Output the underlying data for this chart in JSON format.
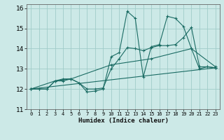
{
  "xlabel": "Humidex (Indice chaleur)",
  "bg_color": "#cce9e7",
  "grid_color": "#a0ccc9",
  "line_color": "#1a6b63",
  "xlim": [
    -0.5,
    23.5
  ],
  "ylim": [
    11,
    16.2
  ],
  "yticks": [
    11,
    12,
    13,
    14,
    15,
    16
  ],
  "xticks": [
    0,
    1,
    2,
    3,
    4,
    5,
    6,
    7,
    8,
    9,
    10,
    11,
    12,
    13,
    14,
    15,
    16,
    17,
    18,
    19,
    20,
    21,
    22,
    23
  ],
  "lines": [
    {
      "x": [
        0,
        1,
        2,
        3,
        4,
        5,
        6,
        7,
        8,
        9,
        10,
        11,
        12,
        13,
        14,
        15,
        16,
        17,
        18,
        19,
        20,
        21,
        22,
        23
      ],
      "y": [
        12.0,
        12.0,
        12.0,
        12.4,
        12.5,
        12.5,
        12.3,
        11.85,
        11.9,
        12.0,
        13.6,
        13.8,
        15.85,
        15.5,
        12.6,
        14.1,
        14.2,
        15.6,
        15.5,
        15.1,
        14.0,
        13.0,
        13.1,
        13.05
      ]
    },
    {
      "x": [
        0,
        1,
        2,
        3,
        4,
        5,
        6,
        7,
        8,
        9,
        10,
        11,
        12,
        13,
        14,
        15,
        16,
        17,
        18,
        19,
        20,
        21,
        22,
        23
      ],
      "y": [
        12.0,
        12.0,
        12.0,
        12.4,
        12.4,
        12.5,
        12.3,
        12.0,
        12.0,
        12.05,
        13.0,
        13.5,
        14.05,
        14.0,
        13.9,
        14.05,
        14.15,
        14.15,
        14.2,
        14.55,
        15.05,
        13.1,
        13.1,
        13.05
      ]
    },
    {
      "x": [
        0,
        3,
        5,
        10,
        15,
        20,
        23
      ],
      "y": [
        12.0,
        12.4,
        12.5,
        13.2,
        13.5,
        14.0,
        13.1
      ]
    },
    {
      "x": [
        0,
        23
      ],
      "y": [
        12.0,
        13.05
      ]
    }
  ]
}
